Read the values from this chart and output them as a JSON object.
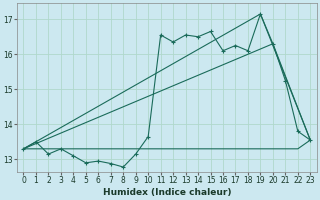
{
  "xlabel": "Humidex (Indice chaleur)",
  "background_color": "#cce8f0",
  "grid_color": "#b0d8cc",
  "line_color": "#1a6b5a",
  "xlim": [
    -0.5,
    23.5
  ],
  "ylim": [
    12.65,
    17.45
  ],
  "yticks": [
    13,
    14,
    15,
    16,
    17
  ],
  "xticks": [
    0,
    1,
    2,
    3,
    4,
    5,
    6,
    7,
    8,
    9,
    10,
    11,
    12,
    13,
    14,
    15,
    16,
    17,
    18,
    19,
    20,
    21,
    22,
    23
  ],
  "series1_x": [
    0,
    1,
    2,
    3,
    4,
    5,
    6,
    7,
    8,
    9,
    10,
    11,
    12,
    13,
    14,
    15,
    16,
    17,
    18,
    19,
    20,
    21,
    22,
    23
  ],
  "series1_y": [
    13.3,
    13.5,
    13.15,
    13.3,
    13.1,
    12.9,
    12.95,
    12.88,
    12.78,
    13.15,
    13.65,
    16.55,
    16.35,
    16.55,
    16.5,
    16.65,
    16.1,
    16.25,
    16.1,
    17.15,
    16.3,
    15.25,
    13.8,
    13.55
  ],
  "series2_x": [
    0,
    1,
    2,
    3,
    4,
    5,
    6,
    7,
    8,
    9,
    10,
    11,
    12,
    13,
    14,
    15,
    16,
    17,
    18,
    19,
    20,
    21,
    22,
    23
  ],
  "series2_y": [
    13.3,
    13.3,
    13.3,
    13.3,
    13.3,
    13.3,
    13.3,
    13.3,
    13.3,
    13.3,
    13.3,
    13.3,
    13.3,
    13.3,
    13.3,
    13.3,
    13.3,
    13.3,
    13.3,
    13.3,
    13.3,
    13.3,
    13.3,
    13.55
  ],
  "series3_x": [
    0,
    19,
    23
  ],
  "series3_y": [
    13.3,
    17.15,
    13.55
  ],
  "series4_x": [
    0,
    20,
    23
  ],
  "series4_y": [
    13.3,
    16.3,
    13.55
  ]
}
